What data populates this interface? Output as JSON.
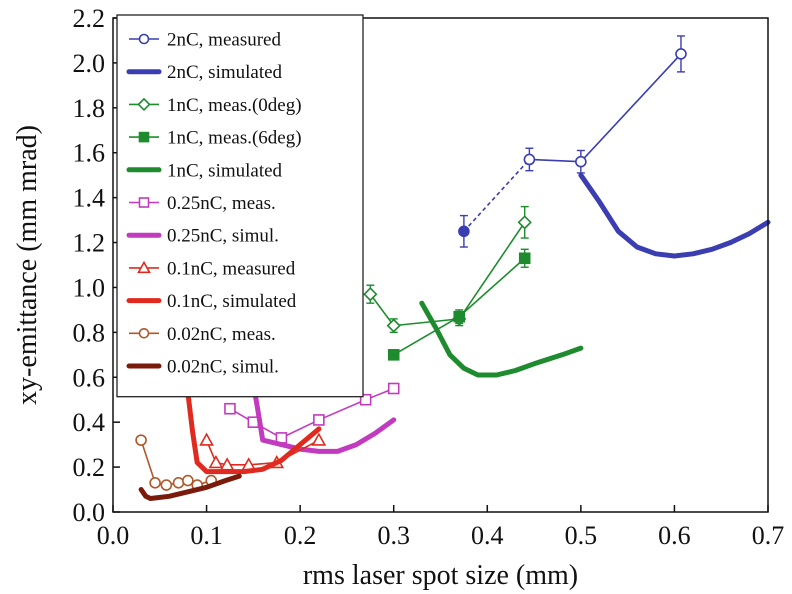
{
  "chart_data": {
    "type": "line",
    "xlabel": "rms laser spot size (mm)",
    "ylabel": "xy-emittance (mm mrad)",
    "xlim": [
      0.0,
      0.7
    ],
    "ylim": [
      0.0,
      2.2
    ],
    "xticks": [
      "0.0",
      "0.1",
      "0.2",
      "0.3",
      "0.4",
      "0.5",
      "0.6",
      "0.7"
    ],
    "yticks": [
      "0.0",
      "0.2",
      "0.4",
      "0.6",
      "0.8",
      "1.0",
      "1.2",
      "1.4",
      "1.6",
      "1.8",
      "2.0",
      "2.2"
    ],
    "grid": false,
    "legend_position": "top-left",
    "series": [
      {
        "name": "2nC, measured",
        "kind": "measured",
        "marker": "circle-open",
        "color": "#3a3eb0",
        "x": [
          0.375,
          0.445,
          0.5,
          0.607
        ],
        "y": [
          1.25,
          1.57,
          1.56,
          2.04
        ],
        "yerr": [
          0.07,
          0.05,
          0.05,
          0.08
        ],
        "filled_points": [
          0
        ],
        "dashed_segments": [
          0
        ]
      },
      {
        "name": "2nC, simulated",
        "kind": "simulated",
        "color": "#3a3eb0",
        "x": [
          0.5,
          0.52,
          0.54,
          0.56,
          0.58,
          0.6,
          0.62,
          0.64,
          0.66,
          0.68,
          0.7
        ],
        "y": [
          1.5,
          1.38,
          1.25,
          1.18,
          1.15,
          1.14,
          1.15,
          1.17,
          1.2,
          1.24,
          1.29
        ]
      },
      {
        "name": "1nC, meas.(0deg)",
        "kind": "measured",
        "marker": "diamond-open",
        "color": "#1e8c2e",
        "x": [
          0.275,
          0.3,
          0.37,
          0.44
        ],
        "y": [
          0.97,
          0.83,
          0.86,
          1.29
        ],
        "yerr": [
          0.04,
          0.03,
          0.03,
          0.07
        ]
      },
      {
        "name": "1nC, meas.(6deg)",
        "kind": "measured",
        "marker": "square-filled",
        "color": "#1e8c2e",
        "x": [
          0.3,
          0.37,
          0.44
        ],
        "y": [
          0.7,
          0.87,
          1.13
        ],
        "yerr": [
          0.0,
          0.03,
          0.04
        ]
      },
      {
        "name": "1nC, simulated",
        "kind": "simulated",
        "color": "#1e8c2e",
        "x": [
          0.33,
          0.345,
          0.36,
          0.375,
          0.39,
          0.41,
          0.43,
          0.45,
          0.48,
          0.5
        ],
        "y": [
          0.93,
          0.82,
          0.7,
          0.64,
          0.61,
          0.61,
          0.63,
          0.66,
          0.7,
          0.73
        ]
      },
      {
        "name": "0.25nC, meas.",
        "kind": "measured",
        "marker": "square-open",
        "color": "#c23bbf",
        "x": [
          0.125,
          0.15,
          0.18,
          0.22,
          0.27,
          0.3
        ],
        "y": [
          0.46,
          0.4,
          0.33,
          0.41,
          0.5,
          0.55
        ]
      },
      {
        "name": "0.25nC, simul.",
        "kind": "simulated",
        "color": "#c23bbf",
        "x": [
          0.15,
          0.155,
          0.16,
          0.18,
          0.2,
          0.22,
          0.24,
          0.26,
          0.28,
          0.3
        ],
        "y": [
          0.57,
          0.45,
          0.32,
          0.3,
          0.28,
          0.27,
          0.27,
          0.3,
          0.35,
          0.41
        ]
      },
      {
        "name": "0.1nC, measured",
        "kind": "measured",
        "marker": "triangle-open",
        "color": "#e02a1f",
        "x": [
          0.1,
          0.11,
          0.122,
          0.145,
          0.175,
          0.22
        ],
        "y": [
          0.32,
          0.22,
          0.21,
          0.21,
          0.22,
          0.32
        ]
      },
      {
        "name": "0.1nC, simulated",
        "kind": "simulated",
        "color": "#e02a1f",
        "x": [
          0.08,
          0.085,
          0.09,
          0.1,
          0.12,
          0.14,
          0.16,
          0.18,
          0.2,
          0.22
        ],
        "y": [
          0.53,
          0.36,
          0.22,
          0.18,
          0.18,
          0.18,
          0.19,
          0.23,
          0.3,
          0.37
        ]
      },
      {
        "name": "0.02nC, meas.",
        "kind": "measured",
        "marker": "circle-open",
        "color": "#b0582a",
        "x": [
          0.03,
          0.045,
          0.057,
          0.07,
          0.08,
          0.09,
          0.105
        ],
        "y": [
          0.32,
          0.13,
          0.12,
          0.13,
          0.14,
          0.12,
          0.14
        ]
      },
      {
        "name": "0.02nC, simul.",
        "kind": "simulated",
        "color": "#7a1a0a",
        "x": [
          0.03,
          0.035,
          0.04,
          0.06,
          0.08,
          0.1,
          0.12,
          0.135
        ],
        "y": [
          0.1,
          0.07,
          0.06,
          0.07,
          0.09,
          0.11,
          0.14,
          0.16
        ]
      }
    ]
  }
}
